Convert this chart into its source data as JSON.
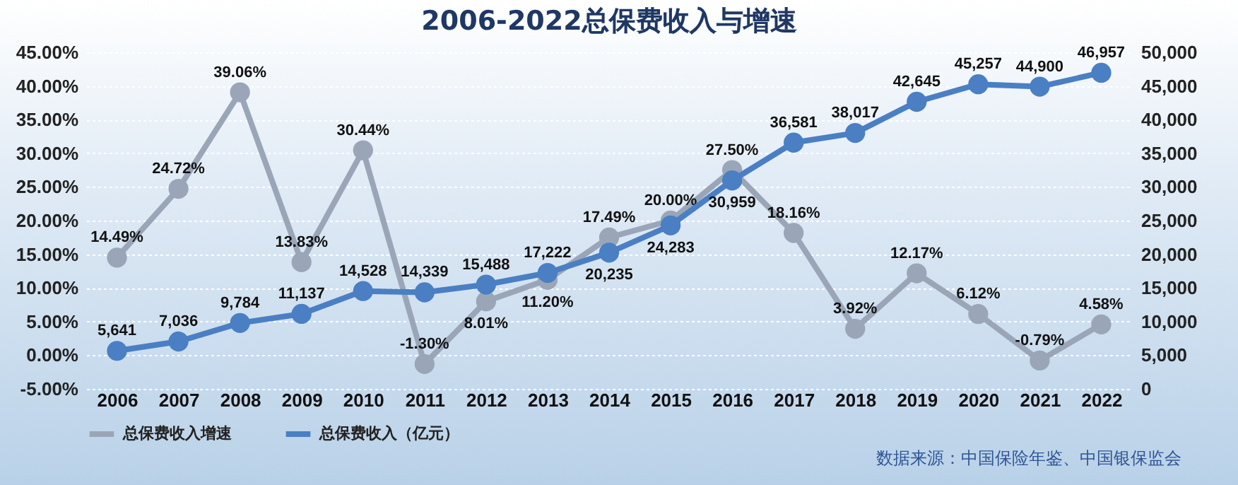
{
  "chart_data": {
    "type": "line",
    "title": "2006-2022总保费收入与增速",
    "categories": [
      "2006",
      "2007",
      "2008",
      "2009",
      "2010",
      "2011",
      "2012",
      "2013",
      "2014",
      "2015",
      "2016",
      "2017",
      "2018",
      "2019",
      "2020",
      "2021",
      "2022"
    ],
    "series": [
      {
        "name": "总保费收入增速",
        "color": "#9aa6b8",
        "values": [
          14.49,
          24.72,
          39.06,
          13.83,
          30.44,
          -1.3,
          8.01,
          11.2,
          17.49,
          20.0,
          27.5,
          18.16,
          3.92,
          12.17,
          6.12,
          -0.79,
          4.58
        ],
        "value_labels": [
          "14.49%",
          "24.72%",
          "39.06%",
          "13.83%",
          "30.44%",
          "-1.30%",
          "8.01%",
          "11.20%",
          "17.49%",
          "20.00%",
          "27.50%",
          "18.16%",
          "3.92%",
          "12.17%",
          "6.12%",
          "-0.79%",
          "4.58%"
        ]
      },
      {
        "name": "总保费收入（亿元）",
        "color": "#4a7fc4",
        "axis": "y2",
        "values": [
          5641,
          7036,
          9784,
          11137,
          14528,
          14339,
          15488,
          17222,
          20235,
          24283,
          30959,
          36581,
          38017,
          42645,
          45257,
          44900,
          46957
        ],
        "value_labels": [
          "5,641",
          "7,036",
          "9,784",
          "11,137",
          "14,528",
          "14,339",
          "15,488",
          "17,222",
          "20,235",
          "24,283",
          "30,959",
          "36,581",
          "38,017",
          "42,645",
          "45,257",
          "44,900",
          "46,957"
        ]
      }
    ],
    "ylim": [
      -5,
      45
    ],
    "yticks": [
      {
        "value": -5,
        "label": "-5.00%"
      },
      {
        "value": 0,
        "label": "0.00%"
      },
      {
        "value": 5,
        "label": "5.00%"
      },
      {
        "value": 10,
        "label": "10.00%"
      },
      {
        "value": 15,
        "label": "15.00%"
      },
      {
        "value": 20,
        "label": "20.00%"
      },
      {
        "value": 25,
        "label": "25.00%"
      },
      {
        "value": 30,
        "label": "30.00%"
      },
      {
        "value": 35,
        "label": "35.00%"
      },
      {
        "value": 40,
        "label": "40.00%"
      },
      {
        "value": 45,
        "label": "45.00%"
      }
    ],
    "y2lim": [
      0,
      50000
    ],
    "y2ticks": [
      {
        "value": 0,
        "label": "0"
      },
      {
        "value": 5000,
        "label": "5,000"
      },
      {
        "value": 10000,
        "label": "10,000"
      },
      {
        "value": 15000,
        "label": "15,000"
      },
      {
        "value": 20000,
        "label": "20,000"
      },
      {
        "value": 25000,
        "label": "25,000"
      },
      {
        "value": 30000,
        "label": "30,000"
      },
      {
        "value": 35000,
        "label": "35,000"
      },
      {
        "value": 40000,
        "label": "40,000"
      },
      {
        "value": 45000,
        "label": "45,000"
      },
      {
        "value": 50000,
        "label": "50,000"
      }
    ],
    "grid": "y",
    "legend": "bottom",
    "marker": "circle",
    "line_style": "solid",
    "annotations": [
      "数据来源：中国保险年鉴、中国银保监会"
    ]
  }
}
